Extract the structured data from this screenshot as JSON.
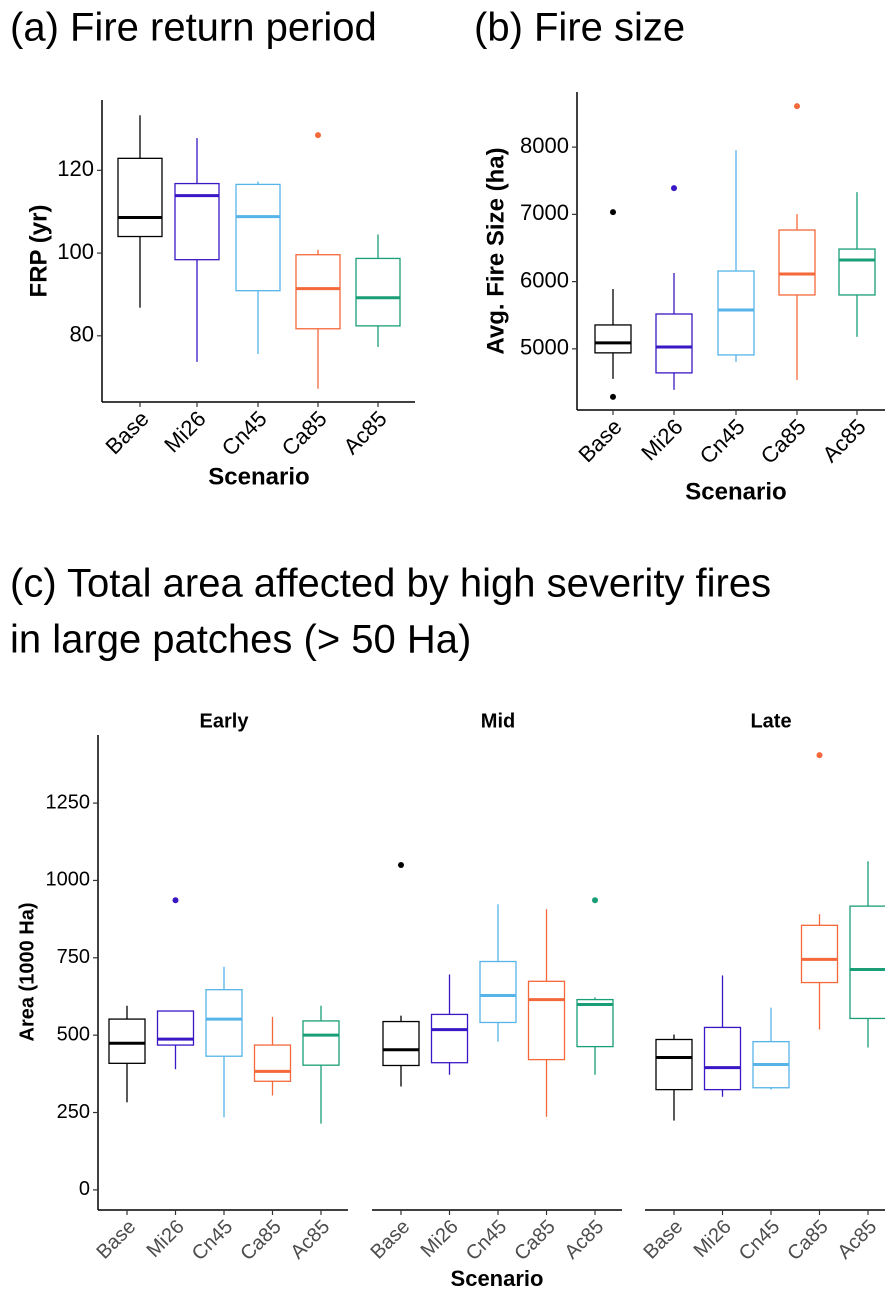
{
  "chart_data": [
    {
      "type": "box",
      "title": "(a) Fire return period",
      "y_label": "FRP (yr)",
      "x_label": "Scenario",
      "categories": [
        "Base",
        "Mi26",
        "Cn45",
        "Ca85",
        "Ac85"
      ],
      "colors": [
        "#000000",
        "#3a17c4",
        "#56b4e9",
        "#f4683a",
        "#1a9e77"
      ],
      "ylim": [
        64,
        137
      ],
      "yticks": [
        80,
        100,
        120
      ],
      "boxes": [
        {
          "min": 86.8,
          "q1": 104,
          "median": 108.6,
          "q3": 122.9,
          "max": 133.3,
          "outliers": []
        },
        {
          "min": 73.7,
          "q1": 98.4,
          "median": 113.9,
          "q3": 116.8,
          "max": 127.8,
          "outliers": []
        },
        {
          "min": 75.6,
          "q1": 90.9,
          "median": 108.8,
          "q3": 116.6,
          "max": 117.3,
          "outliers": []
        },
        {
          "min": 67.2,
          "q1": 81.7,
          "median": 91.4,
          "q3": 99.6,
          "max": 100.8,
          "outliers": [
            128.5
          ]
        },
        {
          "min": 77.3,
          "q1": 82.4,
          "median": 89.2,
          "q3": 98.7,
          "max": 104.5,
          "outliers": []
        }
      ]
    },
    {
      "type": "box",
      "title": "(b) Fire size",
      "y_label": "Avg. Fire Size (ha)",
      "x_label": "Scenario",
      "categories": [
        "Base",
        "Mi26",
        "Cn45",
        "Ca85",
        "Ac85"
      ],
      "colors": [
        "#000000",
        "#3a17c4",
        "#56b4e9",
        "#f4683a",
        "#1a9e77"
      ],
      "ylim": [
        4090,
        8820
      ],
      "yticks": [
        5000,
        6000,
        7000,
        8000
      ],
      "boxes": [
        {
          "min": 4553,
          "q1": 4940,
          "median": 5089,
          "q3": 5355,
          "max": 5890,
          "outliers": [
            7034,
            4285
          ]
        },
        {
          "min": 4390,
          "q1": 4642,
          "median": 5028,
          "q3": 5518,
          "max": 6128,
          "outliers": [
            7391
          ]
        },
        {
          "min": 4805,
          "q1": 4909,
          "median": 5578,
          "q3": 6157,
          "max": 7955,
          "outliers": []
        },
        {
          "min": 4538,
          "q1": 5801,
          "median": 6113,
          "q3": 6767,
          "max": 7004,
          "outliers": [
            8609
          ]
        },
        {
          "min": 5178,
          "q1": 5801,
          "median": 6321,
          "q3": 6484,
          "max": 7331,
          "outliers": []
        }
      ]
    },
    {
      "type": "faceted-box",
      "title": [
        "(c) Total area affected by high severity fires",
        "in large patches (> 50 Ha)"
      ],
      "y_label": "Area (1000 Ha)",
      "x_label": "Scenario",
      "categories": [
        "Base",
        "Mi26",
        "Cn45",
        "Ca85",
        "Ac85"
      ],
      "colors": [
        "#000000",
        "#3a17c4",
        "#56b4e9",
        "#f4683a",
        "#1a9e77"
      ],
      "ylim": [
        -65,
        1470
      ],
      "yticks": [
        0,
        250,
        500,
        750,
        1000,
        1250
      ],
      "facets": [
        {
          "label": "Early",
          "boxes": [
            {
              "min": 283,
              "q1": 409,
              "median": 474,
              "q3": 552,
              "max": 595,
              "outliers": []
            },
            {
              "min": 390,
              "q1": 468,
              "median": 487,
              "q3": 578,
              "max": 578,
              "outliers": [
                936
              ]
            },
            {
              "min": 234,
              "q1": 432,
              "median": 552,
              "q3": 647,
              "max": 721,
              "outliers": []
            },
            {
              "min": 305,
              "q1": 351,
              "median": 383,
              "q3": 468,
              "max": 559,
              "outliers": []
            },
            {
              "min": 214,
              "q1": 403,
              "median": 500,
              "q3": 546,
              "max": 595,
              "outliers": []
            }
          ]
        },
        {
          "label": "Mid",
          "boxes": [
            {
              "min": 334,
              "q1": 402,
              "median": 453,
              "q3": 544,
              "max": 563,
              "outliers": [
                1050
              ]
            },
            {
              "min": 372,
              "q1": 411,
              "median": 518,
              "q3": 567,
              "max": 696,
              "outliers": []
            },
            {
              "min": 479,
              "q1": 541,
              "median": 628,
              "q3": 738,
              "max": 923,
              "outliers": []
            },
            {
              "min": 236,
              "q1": 421,
              "median": 615,
              "q3": 674,
              "max": 907,
              "outliers": []
            },
            {
              "min": 372,
              "q1": 463,
              "median": 599,
              "q3": 615,
              "max": 622,
              "outliers": [
                936
              ]
            }
          ]
        },
        {
          "label": "Late",
          "boxes": [
            {
              "min": 224,
              "q1": 324,
              "median": 428,
              "q3": 486,
              "max": 502,
              "outliers": []
            },
            {
              "min": 301,
              "q1": 324,
              "median": 395,
              "q3": 525,
              "max": 693,
              "outliers": []
            },
            {
              "min": 324,
              "q1": 330,
              "median": 405,
              "q3": 479,
              "max": 589,
              "outliers": []
            },
            {
              "min": 518,
              "q1": 670,
              "median": 745,
              "q3": 855,
              "max": 891,
              "outliers": [
                1405
              ]
            },
            {
              "min": 460,
              "q1": 554,
              "median": 712,
              "q3": 917,
              "max": 1062,
              "outliers": []
            }
          ]
        }
      ]
    }
  ]
}
